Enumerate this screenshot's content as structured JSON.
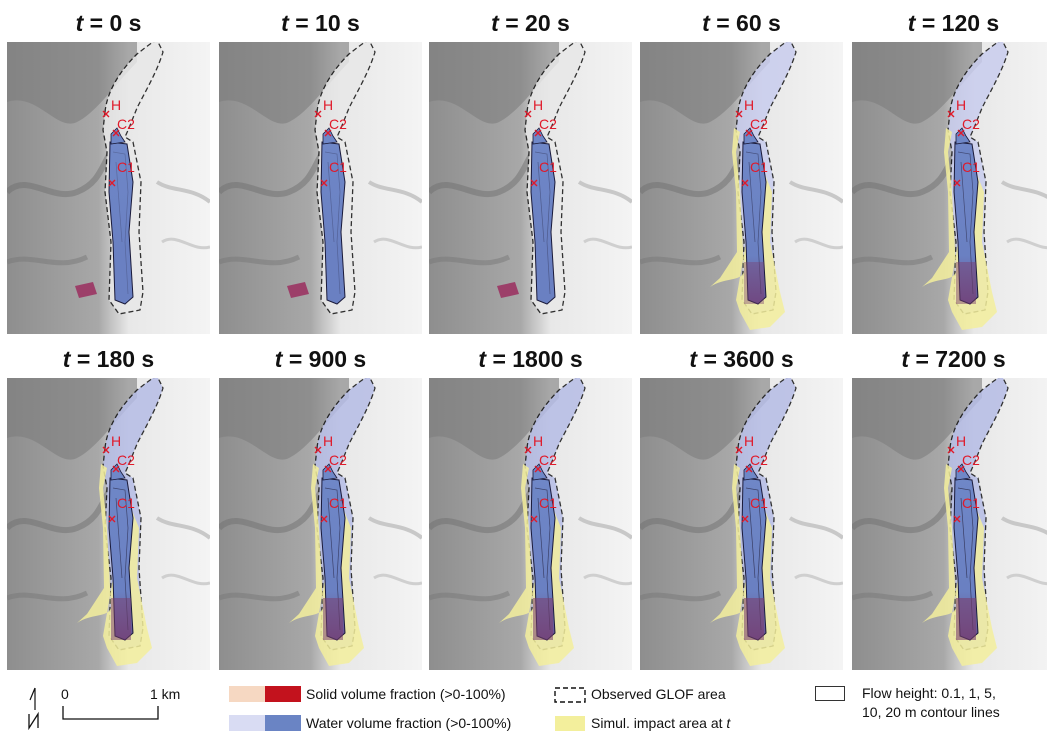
{
  "panels": [
    {
      "t_label": "t",
      "t_value": "= 0 s"
    },
    {
      "t_label": "t",
      "t_value": "= 10 s"
    },
    {
      "t_label": "t",
      "t_value": "= 20 s"
    },
    {
      "t_label": "t",
      "t_value": "= 60 s"
    },
    {
      "t_label": "t",
      "t_value": "= 120 s"
    },
    {
      "t_label": "t",
      "t_value": "= 180 s"
    },
    {
      "t_label": "t",
      "t_value": "= 900 s"
    },
    {
      "t_label": "t",
      "t_value": "= 1800 s"
    },
    {
      "t_label": "t",
      "t_value": "= 3600 s"
    },
    {
      "t_label": "t",
      "t_value": "= 7200 s"
    }
  ],
  "point_labels": {
    "h": "H",
    "c2": "C2",
    "c1": "C1"
  },
  "legend": {
    "scale_zero": "0",
    "scale_km": "1 km",
    "solid": "Solid volume fraction (>0-100%)",
    "water": "Water volume fraction (>0-100%)",
    "observed": "Observed GLOF area",
    "impact": "Simul. impact area at ",
    "impact_t": "t",
    "flow_height_1": "Flow height: 0.1, 1, 5,",
    "flow_height_2": "10, 20 m contour lines"
  },
  "colors": {
    "water_light": "#d9dcf3",
    "water_dark": "#6a84c4",
    "solid_light": "#f6d8c2",
    "solid_dark": "#c3121d",
    "impact": "#f3ef9c",
    "label_red": "#e01a2a"
  }
}
